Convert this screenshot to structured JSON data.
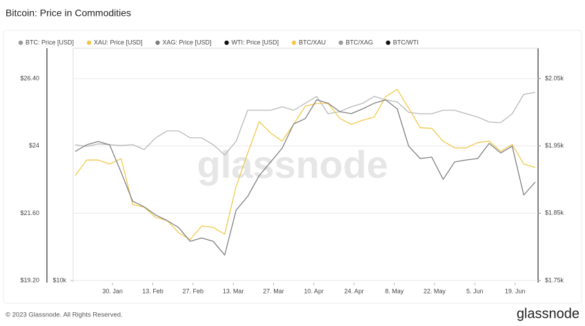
{
  "chart_data": {
    "type": "line",
    "title": "Bitcoin: Price in Commodities",
    "watermark": "glassnode",
    "copyright": "© 2023 Glassnode. All Rights Reserved.",
    "logo": "glassnode",
    "x": [
      17,
      21,
      25,
      29,
      33,
      37,
      41,
      45,
      49,
      53,
      57,
      61,
      65,
      69,
      73,
      77,
      81,
      85,
      89,
      93,
      97,
      101,
      105,
      109,
      113,
      117,
      121,
      125,
      129,
      133,
      137,
      141,
      145,
      149,
      153,
      157,
      161,
      165,
      169,
      173,
      177
    ],
    "xlim": [
      16.3,
      178
    ],
    "xticks": [
      {
        "value": 30,
        "label": "30. Jan"
      },
      {
        "value": 44,
        "label": "13. Feb"
      },
      {
        "value": 58,
        "label": "27. Feb"
      },
      {
        "value": 72,
        "label": "13. Mar"
      },
      {
        "value": 86,
        "label": "27. Mar"
      },
      {
        "value": 100,
        "label": "10. Apr"
      },
      {
        "value": 114,
        "label": "24. Apr"
      },
      {
        "value": 128,
        "label": "8. May"
      },
      {
        "value": 142,
        "label": "22. May"
      },
      {
        "value": 156,
        "label": "5. Jun"
      },
      {
        "value": 170,
        "label": "19. Jun"
      }
    ],
    "ylim": [
      19.13,
      27.48
    ],
    "yticks": [
      {
        "value": 19.2,
        "label": "$19.20"
      },
      {
        "value": 21.6,
        "label": "$21.60"
      },
      {
        "value": 24,
        "label": "$24"
      },
      {
        "value": 26.4,
        "label": "$26.40"
      }
    ],
    "y2lim": [
      1747,
      2095
    ],
    "y2ticks": [
      {
        "value": 1750,
        "label": "$1.75k"
      },
      {
        "value": 1850,
        "label": "$1.85k"
      },
      {
        "value": 1950,
        "label": "$1.95k"
      },
      {
        "value": 2050,
        "label": "$2.05k"
      }
    ],
    "y3lim": [
      9888,
      35560
    ],
    "y3log": true,
    "y3ticks": [
      {
        "value": 10000,
        "label": "$10k"
      }
    ],
    "grid": true,
    "series": [
      {
        "name": "BTC: Price [USD]",
        "color": "#b8b8b8",
        "legend_color": "#999999",
        "axis": "y3",
        "values": [
          21000,
          20800,
          21100,
          21000,
          20900,
          21000,
          20450,
          21810,
          22640,
          22640,
          21810,
          21810,
          21000,
          19850,
          21400,
          25340,
          25340,
          25340,
          25820,
          25340,
          26320,
          27330,
          24870,
          25150,
          25820,
          26320,
          27330,
          26820,
          26520,
          25060,
          24870,
          24870,
          25340,
          25340,
          24870,
          24410,
          23770,
          23680,
          24870,
          27640,
          27950
        ]
      },
      {
        "name": "XAU: Price [USD]",
        "color": "#f1c84b",
        "axis": "y2",
        "values": [
          1906,
          1929,
          1929,
          1923,
          1931,
          1863,
          1859,
          1844,
          1839,
          1821,
          1811,
          1831,
          1829,
          1819,
          1890,
          1939,
          1986,
          1969,
          1957,
          1982,
          2009,
          2013,
          2013,
          1991,
          1982,
          1988,
          1993,
          2023,
          2034,
          2006,
          1977,
          1976,
          1957,
          1947,
          1947,
          1955,
          1957,
          1942,
          1952,
          1923,
          1918
        ]
      },
      {
        "name": "XAG: Price [USD]",
        "color": "#7f7f7f",
        "axis": "y",
        "values": [
          23.8,
          24.04,
          24.16,
          24.04,
          23.06,
          22.03,
          21.83,
          21.54,
          21.34,
          21.09,
          20.6,
          20.72,
          20.6,
          20.11,
          21.71,
          22.2,
          22.94,
          23.43,
          23.92,
          24.78,
          24.97,
          25.64,
          25.52,
          25.22,
          25.15,
          25.32,
          25.52,
          25.64,
          25.32,
          23.99,
          23.55,
          23.6,
          22.81,
          23.43,
          23.5,
          23.55,
          24.09,
          23.75,
          23.99,
          22.25,
          22.71
        ]
      }
    ],
    "hidden_series": [
      {
        "name": "WTI: Price [USD]",
        "color": "#111111"
      },
      {
        "name": "BTC/XAU",
        "color": "#f1c84b"
      },
      {
        "name": "BTC/XAG",
        "color": "#999999"
      },
      {
        "name": "BTC/WTI",
        "color": "#111111"
      }
    ]
  }
}
